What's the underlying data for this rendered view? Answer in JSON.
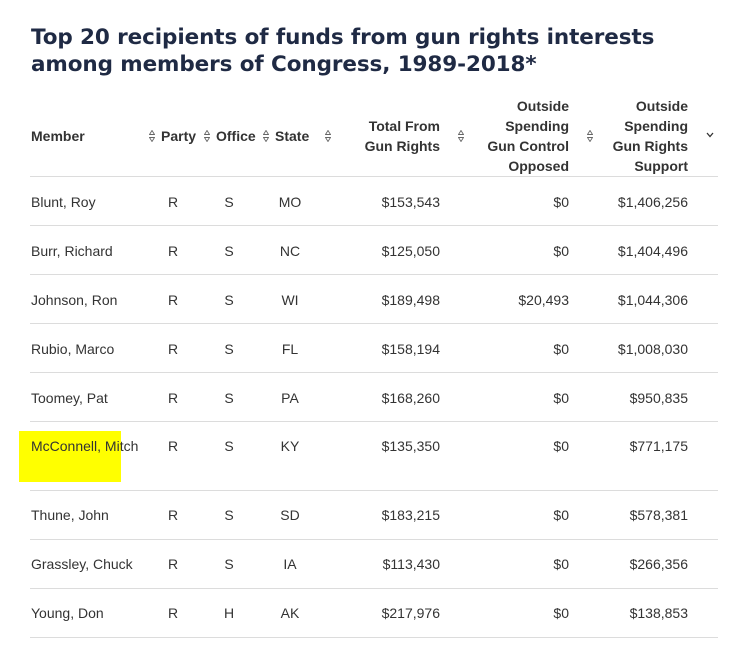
{
  "title": "Top 20 recipients of funds from gun rights interests among members of Congress, 1989-2018*",
  "colors": {
    "title": "#1f2a44",
    "text": "#333333",
    "divider": "#dcdcdc",
    "highlight": "#ffff00"
  },
  "headers": {
    "member": "Member",
    "party": "Party",
    "office": "Office",
    "state": "State",
    "total": [
      "Total From",
      "Gun Rights"
    ],
    "gun_control_opposed": [
      "Outside",
      "Spending",
      "Gun Control",
      "Opposed"
    ],
    "gun_rights_support": [
      "Outside",
      "Spending",
      "Gun Rights",
      "Support"
    ]
  },
  "icons": {
    "sortable": "sort-up-down-icon",
    "sorted_desc": "chevron-down-icon"
  },
  "rows": [
    {
      "member": "Blunt, Roy",
      "party": "R",
      "office": "S",
      "state": "MO",
      "total": "$153,543",
      "gun_control_opposed": "$0",
      "gun_rights_support": "$1,406,256"
    },
    {
      "member": "Burr, Richard",
      "party": "R",
      "office": "S",
      "state": "NC",
      "total": "$125,050",
      "gun_control_opposed": "$0",
      "gun_rights_support": "$1,404,496"
    },
    {
      "member": "Johnson, Ron",
      "party": "R",
      "office": "S",
      "state": "WI",
      "total": "$189,498",
      "gun_control_opposed": "$20,493",
      "gun_rights_support": "$1,044,306"
    },
    {
      "member": "Rubio, Marco",
      "party": "R",
      "office": "S",
      "state": "FL",
      "total": "$158,194",
      "gun_control_opposed": "$0",
      "gun_rights_support": "$1,008,030"
    },
    {
      "member": "Toomey, Pat",
      "party": "R",
      "office": "S",
      "state": "PA",
      "total": "$168,260",
      "gun_control_opposed": "$0",
      "gun_rights_support": "$950,835"
    },
    {
      "member": "McConnell, Mitch",
      "party": "R",
      "office": "S",
      "state": "KY",
      "total": "$135,350",
      "gun_control_opposed": "$0",
      "gun_rights_support": "$771,175",
      "highlighted": true
    },
    {
      "member": "Thune, John",
      "party": "R",
      "office": "S",
      "state": "SD",
      "total": "$183,215",
      "gun_control_opposed": "$0",
      "gun_rights_support": "$578,381"
    },
    {
      "member": "Grassley, Chuck",
      "party": "R",
      "office": "S",
      "state": "IA",
      "total": "$113,430",
      "gun_control_opposed": "$0",
      "gun_rights_support": "$266,356"
    },
    {
      "member": "Young, Don",
      "party": "R",
      "office": "H",
      "state": "AK",
      "total": "$217,976",
      "gun_control_opposed": "$0",
      "gun_rights_support": "$138,853"
    }
  ]
}
